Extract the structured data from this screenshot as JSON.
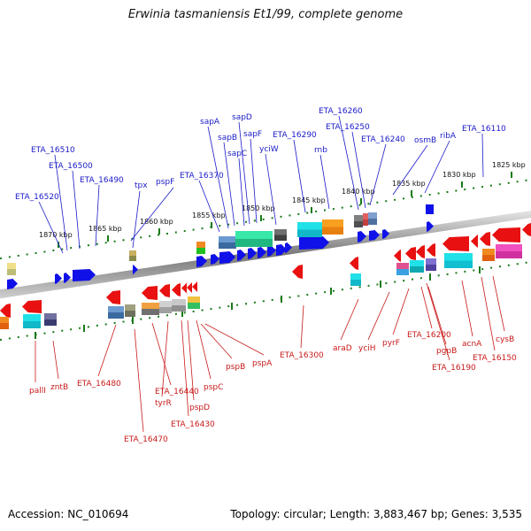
{
  "title": "Erwinia tasmaniensis Et1/99, complete genome",
  "accession": "Accession: NC_010694",
  "summary": "Topology: circular; Length: 3,883,467 bp; Genes: 3,535",
  "scale_ticks": [
    "1870 kbp",
    "1865 kbp",
    "1860 kbp",
    "1855 kbp",
    "1850 kbp",
    "1845 kbp",
    "1840 kbp",
    "1835 kbp",
    "1830 kbp",
    "1825 kbp"
  ],
  "top_genes": [
    "ETA_16520",
    "ETA_16510",
    "ETA_16500",
    "ETA_16490",
    "tpx",
    "pspF",
    "ETA_16370",
    "sapA",
    "sapB",
    "sapD",
    "sapC",
    "sapF",
    "yciW",
    "ETA_16290",
    "rnb",
    "ETA_16260",
    "ETA_16250",
    "ETA_16240",
    "osmB",
    "ribA",
    "ETA_16110"
  ],
  "bottom_genes": [
    "pallI",
    "zntB",
    "ETA_16480",
    "ETA_16470",
    "ETA_16440",
    "tyrR",
    "ETA_16430",
    "pspD",
    "pspC",
    "pspB",
    "pspA",
    "ETA_16300",
    "araD",
    "yciH",
    "pyrF",
    "ETA_16200",
    "pgpB",
    "ETA_16190",
    "acnA",
    "ETA_16150",
    "cysB"
  ],
  "colors": {
    "forward": "#1010e8",
    "reverse": "#e81010",
    "label_top": "#1a1ac8",
    "label_bottom": "#c81a1a",
    "backbone": "#808080",
    "tick": "#1a7a1a"
  }
}
